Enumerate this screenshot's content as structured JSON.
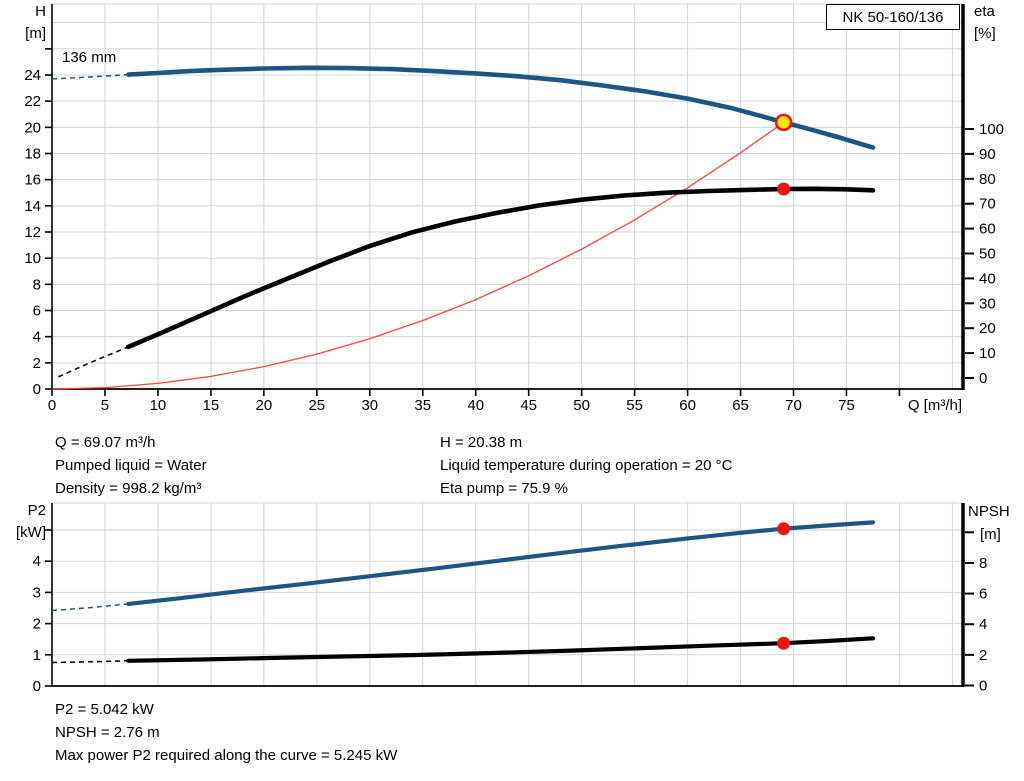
{
  "title_box": "NK 50-160/136",
  "impeller_diameter_label": "136 mm",
  "info_top_left": [
    "Q = 69.07 m³/h",
    "Pumped liquid = Water",
    "Density = 998.2 kg/m³"
  ],
  "info_top_right": [
    "H = 20.38 m",
    "Liquid temperature during operation = 20 °C",
    "Eta pump = 75.9 %"
  ],
  "info_bottom": [
    "P2 = 5.042 kW",
    "NPSH = 2.76 m",
    "Max power P2 required along the curve = 5.245 kW"
  ],
  "colors": {
    "curve_blue": "#1d5586",
    "curve_black": "#000000",
    "system_curve_red": "#fd4438",
    "duty_dot_red": "#ec1515",
    "operating_point_fill": "#ffe60a",
    "operating_point_ring": "#e81414",
    "grid": "#d3d3d3",
    "axis": "#000000"
  },
  "chart_data": [
    {
      "type": "line",
      "title": "NK 50-160/136",
      "x_axis": {
        "label": "Q [m³/h]",
        "min": 0,
        "max": 86,
        "tick_step": 5,
        "tick_max": 80,
        "label_max": 75,
        "grid_max": 85,
        "show_tick_labels": true
      },
      "y_left": {
        "label_lines": [
          "H",
          "[m]"
        ],
        "min": 0,
        "max": 29.4,
        "tick_step": 2,
        "tick_max": 26,
        "label_max": 24,
        "grid_max": 28
      },
      "y_right": {
        "label_lines": [
          "eta",
          "[%]"
        ],
        "min": 0,
        "max": 100,
        "tick_step": 10,
        "tick_max": 100,
        "label_max": 100,
        "grid_max": 0
      },
      "series": [
        {
          "name": "system-curve",
          "axis": "right_no",
          "yaxis": "yl",
          "color": "system_curve_red",
          "width": 1.3,
          "points": [
            [
              0,
              0
            ],
            [
              5,
              0.107
            ],
            [
              10,
              0.427
            ],
            [
              15,
              0.961
            ],
            [
              20,
              1.709
            ],
            [
              25,
              2.67
            ],
            [
              30,
              3.845
            ],
            [
              35,
              5.233
            ],
            [
              40,
              6.836
            ],
            [
              45,
              8.652
            ],
            [
              50,
              10.682
            ],
            [
              55,
              12.925
            ],
            [
              60,
              15.382
            ],
            [
              65,
              18.053
            ],
            [
              69.07,
              20.38
            ]
          ]
        },
        {
          "name": "efficiency-curve",
          "yaxis": "yr",
          "color": "curve_black",
          "width": 4.6,
          "dashed_lead": [
            [
              0.6,
              0.5
            ],
            [
              3.5,
              6
            ],
            [
              7.2,
              12.5
            ]
          ],
          "points": [
            [
              7.2,
              12.5
            ],
            [
              10,
              17.5
            ],
            [
              14,
              25
            ],
            [
              18,
              32.5
            ],
            [
              22,
              39.5
            ],
            [
              26,
              46.5
            ],
            [
              30,
              53
            ],
            [
              34,
              58.5
            ],
            [
              38,
              62.8
            ],
            [
              42,
              66.3
            ],
            [
              46,
              69.3
            ],
            [
              50,
              71.6
            ],
            [
              54,
              73.3
            ],
            [
              58,
              74.4
            ],
            [
              62,
              75.1
            ],
            [
              66,
              75.6
            ],
            [
              69.07,
              75.9
            ],
            [
              72,
              76.0
            ],
            [
              75,
              75.8
            ],
            [
              77.5,
              75.4
            ]
          ]
        },
        {
          "name": "head-curve",
          "yaxis": "yl",
          "color": "curve_blue",
          "width": 4.6,
          "dashed_lead": [
            [
              0,
              23.7
            ],
            [
              2.5,
              23.8
            ],
            [
              5,
              23.92
            ],
            [
              7.2,
              24.03
            ]
          ],
          "points": [
            [
              7.2,
              24.03
            ],
            [
              10,
              24.15
            ],
            [
              13,
              24.3
            ],
            [
              16,
              24.4
            ],
            [
              20,
              24.5
            ],
            [
              24,
              24.55
            ],
            [
              28,
              24.53
            ],
            [
              32,
              24.45
            ],
            [
              36,
              24.3
            ],
            [
              40,
              24.12
            ],
            [
              44,
              23.9
            ],
            [
              48,
              23.6
            ],
            [
              52,
              23.2
            ],
            [
              56,
              22.75
            ],
            [
              60,
              22.2
            ],
            [
              64,
              21.5
            ],
            [
              67,
              20.85
            ],
            [
              69.07,
              20.38
            ],
            [
              71,
              19.97
            ],
            [
              74,
              19.3
            ],
            [
              77.5,
              18.45
            ]
          ]
        }
      ],
      "markers": [
        {
          "name": "operating-point",
          "yaxis": "yl",
          "x": 69.07,
          "value": 20.38,
          "kind": "operating"
        },
        {
          "name": "efficiency-duty-point",
          "yaxis": "yr",
          "x": 69.07,
          "value": 75.9,
          "kind": "dot"
        }
      ]
    },
    {
      "type": "line",
      "title": "P2 / NPSH",
      "x_axis": {
        "label": "",
        "min": 0,
        "max": 86,
        "tick_step": 5,
        "tick_max": -1,
        "label_max": -1,
        "grid_max": 85,
        "show_tick_labels": false
      },
      "y_left": {
        "label_lines": [
          "P2",
          "[kW]"
        ],
        "min": 0,
        "max": 5.87,
        "tick_step": 1,
        "tick_max": 5,
        "label_max": 4,
        "grid_max": 5
      },
      "y_right": {
        "label_lines": [
          "NPSH",
          "[m]"
        ],
        "min": 0,
        "max": 11.9,
        "tick_step": 2,
        "tick_max": 10,
        "label_max": 8,
        "grid_max": 0
      },
      "series": [
        {
          "name": "p2-curve",
          "yaxis": "yl",
          "color": "curve_blue",
          "width": 4.2,
          "dashed_lead": [
            [
              0,
              2.42
            ],
            [
              3.5,
              2.51
            ],
            [
              7.2,
              2.63
            ]
          ],
          "points": [
            [
              7.2,
              2.63
            ],
            [
              12,
              2.81
            ],
            [
              18,
              3.05
            ],
            [
              24,
              3.28
            ],
            [
              30,
              3.52
            ],
            [
              36,
              3.76
            ],
            [
              42,
              4.01
            ],
            [
              48,
              4.26
            ],
            [
              54,
              4.5
            ],
            [
              60,
              4.73
            ],
            [
              65,
              4.91
            ],
            [
              69.07,
              5.042
            ],
            [
              73,
              5.14
            ],
            [
              77.5,
              5.245
            ]
          ]
        },
        {
          "name": "npsh-curve",
          "yaxis": "yr",
          "color": "curve_black",
          "width": 4.2,
          "dashed_lead": [
            [
              0,
              1.5
            ],
            [
              3.5,
              1.55
            ],
            [
              7.2,
              1.61
            ]
          ],
          "points": [
            [
              7.2,
              1.61
            ],
            [
              14,
              1.7
            ],
            [
              21,
              1.8
            ],
            [
              28,
              1.9
            ],
            [
              35,
              2.0
            ],
            [
              42,
              2.13
            ],
            [
              49,
              2.28
            ],
            [
              56,
              2.45
            ],
            [
              62,
              2.6
            ],
            [
              69.07,
              2.76
            ],
            [
              73,
              2.9
            ],
            [
              77.5,
              3.08
            ]
          ]
        }
      ],
      "markers": [
        {
          "name": "p2-duty-point",
          "yaxis": "yl",
          "x": 69.07,
          "value": 5.042,
          "kind": "dot"
        },
        {
          "name": "npsh-duty-point",
          "yaxis": "yr",
          "x": 69.07,
          "value": 2.76,
          "kind": "dot"
        }
      ]
    }
  ]
}
